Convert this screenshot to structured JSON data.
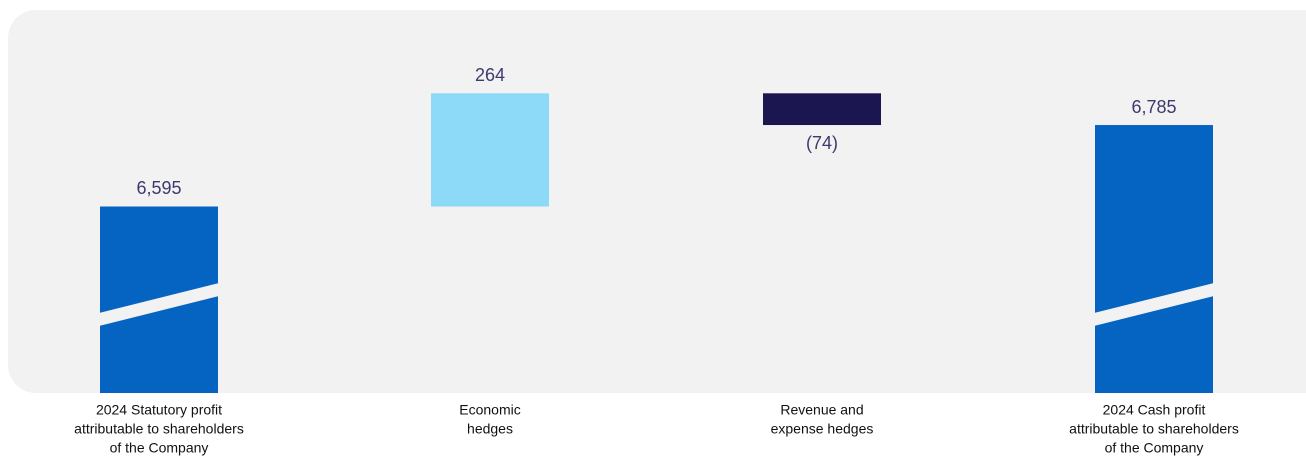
{
  "chart_data": {
    "type": "waterfall",
    "categories": [
      [
        "2024 Statutory profit",
        "attributable to shareholders",
        "of the Company"
      ],
      [
        "Economic",
        "hedges"
      ],
      [
        "Revenue and",
        "expense hedges"
      ],
      [
        "2024 Cash profit",
        "attributable to shareholders",
        "of the Company"
      ]
    ],
    "values": [
      6595,
      264,
      -74,
      6785
    ],
    "value_labels": [
      "6,595",
      "264",
      "(74)",
      "6,785"
    ],
    "totals": [
      true,
      false,
      false,
      true
    ],
    "total_color": "#0563c1",
    "increase_color": "#8cd9f8",
    "decrease_color": "#1c1650",
    "ylim": [
      6160,
      6960
    ]
  }
}
